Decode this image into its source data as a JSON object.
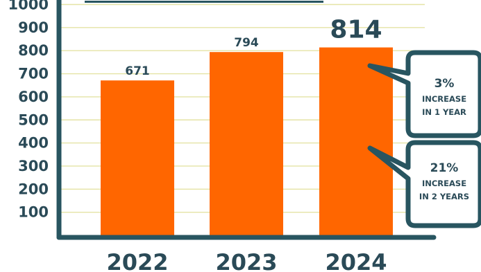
{
  "chart_data": {
    "type": "bar",
    "categories": [
      "2022",
      "2023",
      "2024"
    ],
    "values": [
      671,
      794,
      814
    ],
    "data_labels": [
      "671",
      "794",
      "814"
    ],
    "yticks": [
      100,
      200,
      300,
      400,
      500,
      600,
      700,
      800,
      900,
      1000
    ],
    "ylim": [
      0,
      1050
    ],
    "grid": true,
    "title": "",
    "xlabel": "",
    "ylabel": ""
  },
  "callouts": [
    {
      "percent": "3%",
      "line1": "INCREASE",
      "line2": "IN 1 YEAR"
    },
    {
      "percent": "21%",
      "line1": "INCREASE",
      "line2": "IN 2 YEARS"
    }
  ],
  "colors": {
    "bar": "#ff6600",
    "axis": "#285560",
    "grid": "#e4e3a4",
    "text": "#2a4a57",
    "callout_fill": "#ffffff"
  }
}
